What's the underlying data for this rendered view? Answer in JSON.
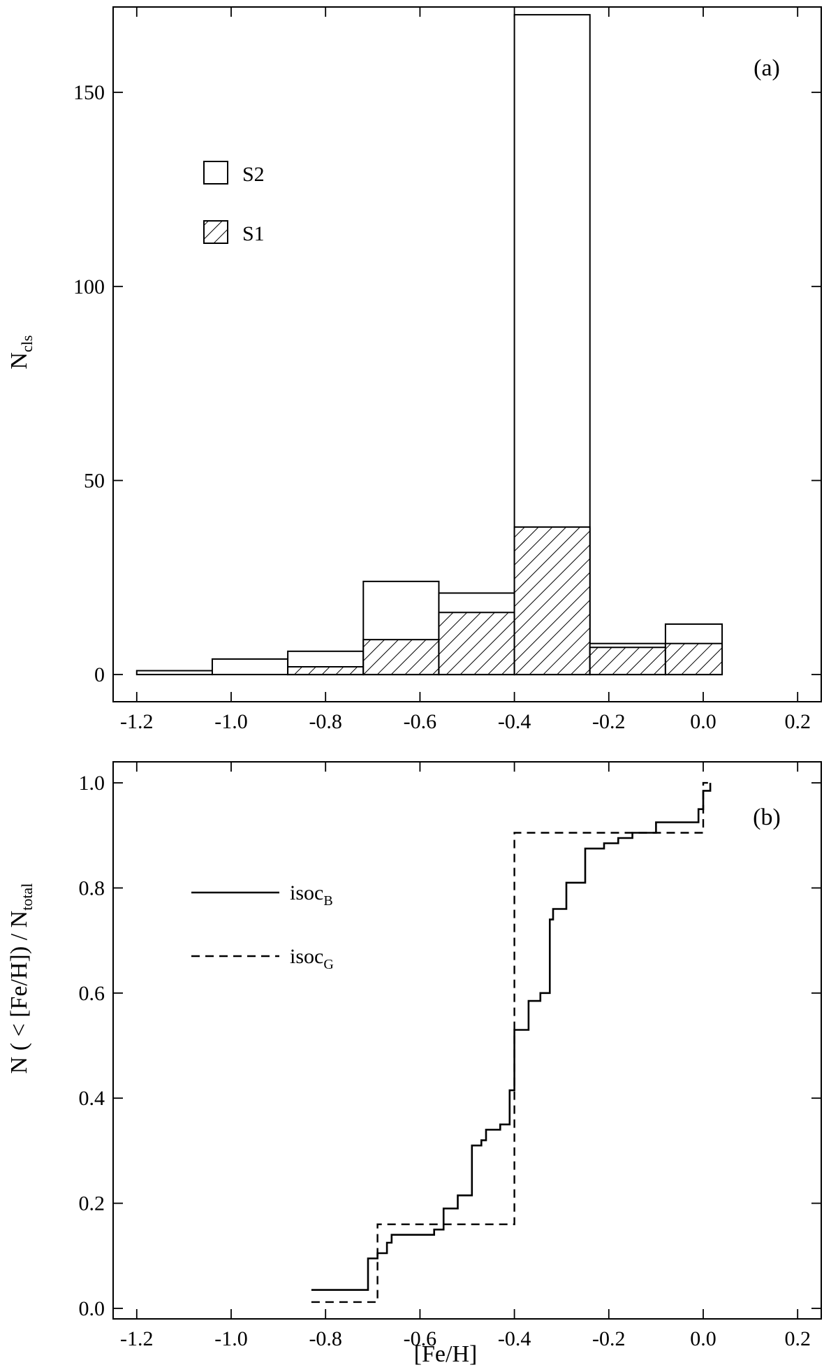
{
  "chart_data": [
    {
      "type": "bar",
      "panel_label": "(a)",
      "ylabel_main": "N",
      "ylabel_sub": "cls",
      "xlabel": "",
      "xlim": [
        -1.25,
        0.25
      ],
      "ylim": [
        -7,
        172
      ],
      "xticks": [
        -1.2,
        -1.0,
        -0.8,
        -0.6,
        -0.4,
        -0.2,
        0.0,
        0.2
      ],
      "xtick_labels": [
        "-1.2",
        "-1.0",
        "-0.8",
        "-0.6",
        "-0.4",
        "-0.2",
        "0.0",
        "0.2"
      ],
      "yticks": [
        0,
        50,
        100,
        150
      ],
      "ytick_labels": [
        "0",
        "50",
        "100",
        "150"
      ],
      "legend_placement": "upper-left",
      "bin_edges": [
        -1.2,
        -1.04,
        -0.88,
        -0.72,
        -0.56,
        -0.4,
        -0.24,
        -0.08,
        0.04,
        0.2
      ],
      "series": [
        {
          "name": "S2",
          "pattern": "open",
          "values": [
            1,
            4,
            6,
            24,
            21,
            170,
            8,
            13,
            0
          ]
        },
        {
          "name": "S1",
          "pattern": "hatched",
          "values": [
            0,
            0,
            2,
            9,
            16,
            38,
            7,
            8,
            0
          ]
        }
      ]
    },
    {
      "type": "line",
      "panel_label": "(b)",
      "ylabel": "N ( < [Fe/H]) / N",
      "ylabel_sub": "total",
      "xlabel": "[Fe/H]",
      "xlim": [
        -1.25,
        0.25
      ],
      "ylim": [
        -0.02,
        1.04
      ],
      "xticks": [
        -1.2,
        -1.0,
        -0.8,
        -0.6,
        -0.4,
        -0.2,
        0.0,
        0.2
      ],
      "xtick_labels": [
        "-1.2",
        "-1.0",
        "-0.8",
        "-0.6",
        "-0.4",
        "-0.2",
        "0.0",
        "0.2"
      ],
      "yticks": [
        0.0,
        0.2,
        0.4,
        0.6,
        0.8,
        1.0
      ],
      "ytick_labels": [
        "0.0",
        "0.2",
        "0.4",
        "0.6",
        "0.8",
        "1.0"
      ],
      "legend_placement": "upper-left",
      "series": [
        {
          "name_main": "isoc",
          "name_sub": "B",
          "style": "solid",
          "points": [
            [
              -0.83,
              0.035
            ],
            [
              -0.71,
              0.035
            ],
            [
              -0.71,
              0.095
            ],
            [
              -0.69,
              0.095
            ],
            [
              -0.69,
              0.105
            ],
            [
              -0.67,
              0.105
            ],
            [
              -0.67,
              0.125
            ],
            [
              -0.66,
              0.125
            ],
            [
              -0.66,
              0.14
            ],
            [
              -0.57,
              0.14
            ],
            [
              -0.57,
              0.15
            ],
            [
              -0.55,
              0.15
            ],
            [
              -0.55,
              0.19
            ],
            [
              -0.52,
              0.19
            ],
            [
              -0.52,
              0.215
            ],
            [
              -0.49,
              0.215
            ],
            [
              -0.49,
              0.31
            ],
            [
              -0.47,
              0.31
            ],
            [
              -0.47,
              0.32
            ],
            [
              -0.46,
              0.32
            ],
            [
              -0.46,
              0.34
            ],
            [
              -0.43,
              0.34
            ],
            [
              -0.43,
              0.35
            ],
            [
              -0.41,
              0.35
            ],
            [
              -0.41,
              0.415
            ],
            [
              -0.4,
              0.415
            ],
            [
              -0.4,
              0.53
            ],
            [
              -0.37,
              0.53
            ],
            [
              -0.37,
              0.585
            ],
            [
              -0.345,
              0.585
            ],
            [
              -0.345,
              0.6
            ],
            [
              -0.325,
              0.6
            ],
            [
              -0.325,
              0.74
            ],
            [
              -0.318,
              0.74
            ],
            [
              -0.318,
              0.76
            ],
            [
              -0.29,
              0.76
            ],
            [
              -0.29,
              0.81
            ],
            [
              -0.25,
              0.81
            ],
            [
              -0.25,
              0.875
            ],
            [
              -0.21,
              0.875
            ],
            [
              -0.21,
              0.885
            ],
            [
              -0.18,
              0.885
            ],
            [
              -0.18,
              0.895
            ],
            [
              -0.15,
              0.895
            ],
            [
              -0.15,
              0.905
            ],
            [
              -0.1,
              0.905
            ],
            [
              -0.1,
              0.925
            ],
            [
              -0.01,
              0.925
            ],
            [
              -0.01,
              0.95
            ],
            [
              0.0,
              0.95
            ],
            [
              0.0,
              0.985
            ],
            [
              0.015,
              0.985
            ],
            [
              0.015,
              1.0
            ]
          ]
        },
        {
          "name_main": "isoc",
          "name_sub": "G",
          "style": "dashed",
          "points": [
            [
              -0.83,
              0.012
            ],
            [
              -0.69,
              0.012
            ],
            [
              -0.69,
              0.16
            ],
            [
              -0.4,
              0.16
            ],
            [
              -0.4,
              0.905
            ],
            [
              0.0,
              0.905
            ],
            [
              0.0,
              1.0
            ],
            [
              0.01,
              1.0
            ]
          ]
        }
      ]
    }
  ]
}
